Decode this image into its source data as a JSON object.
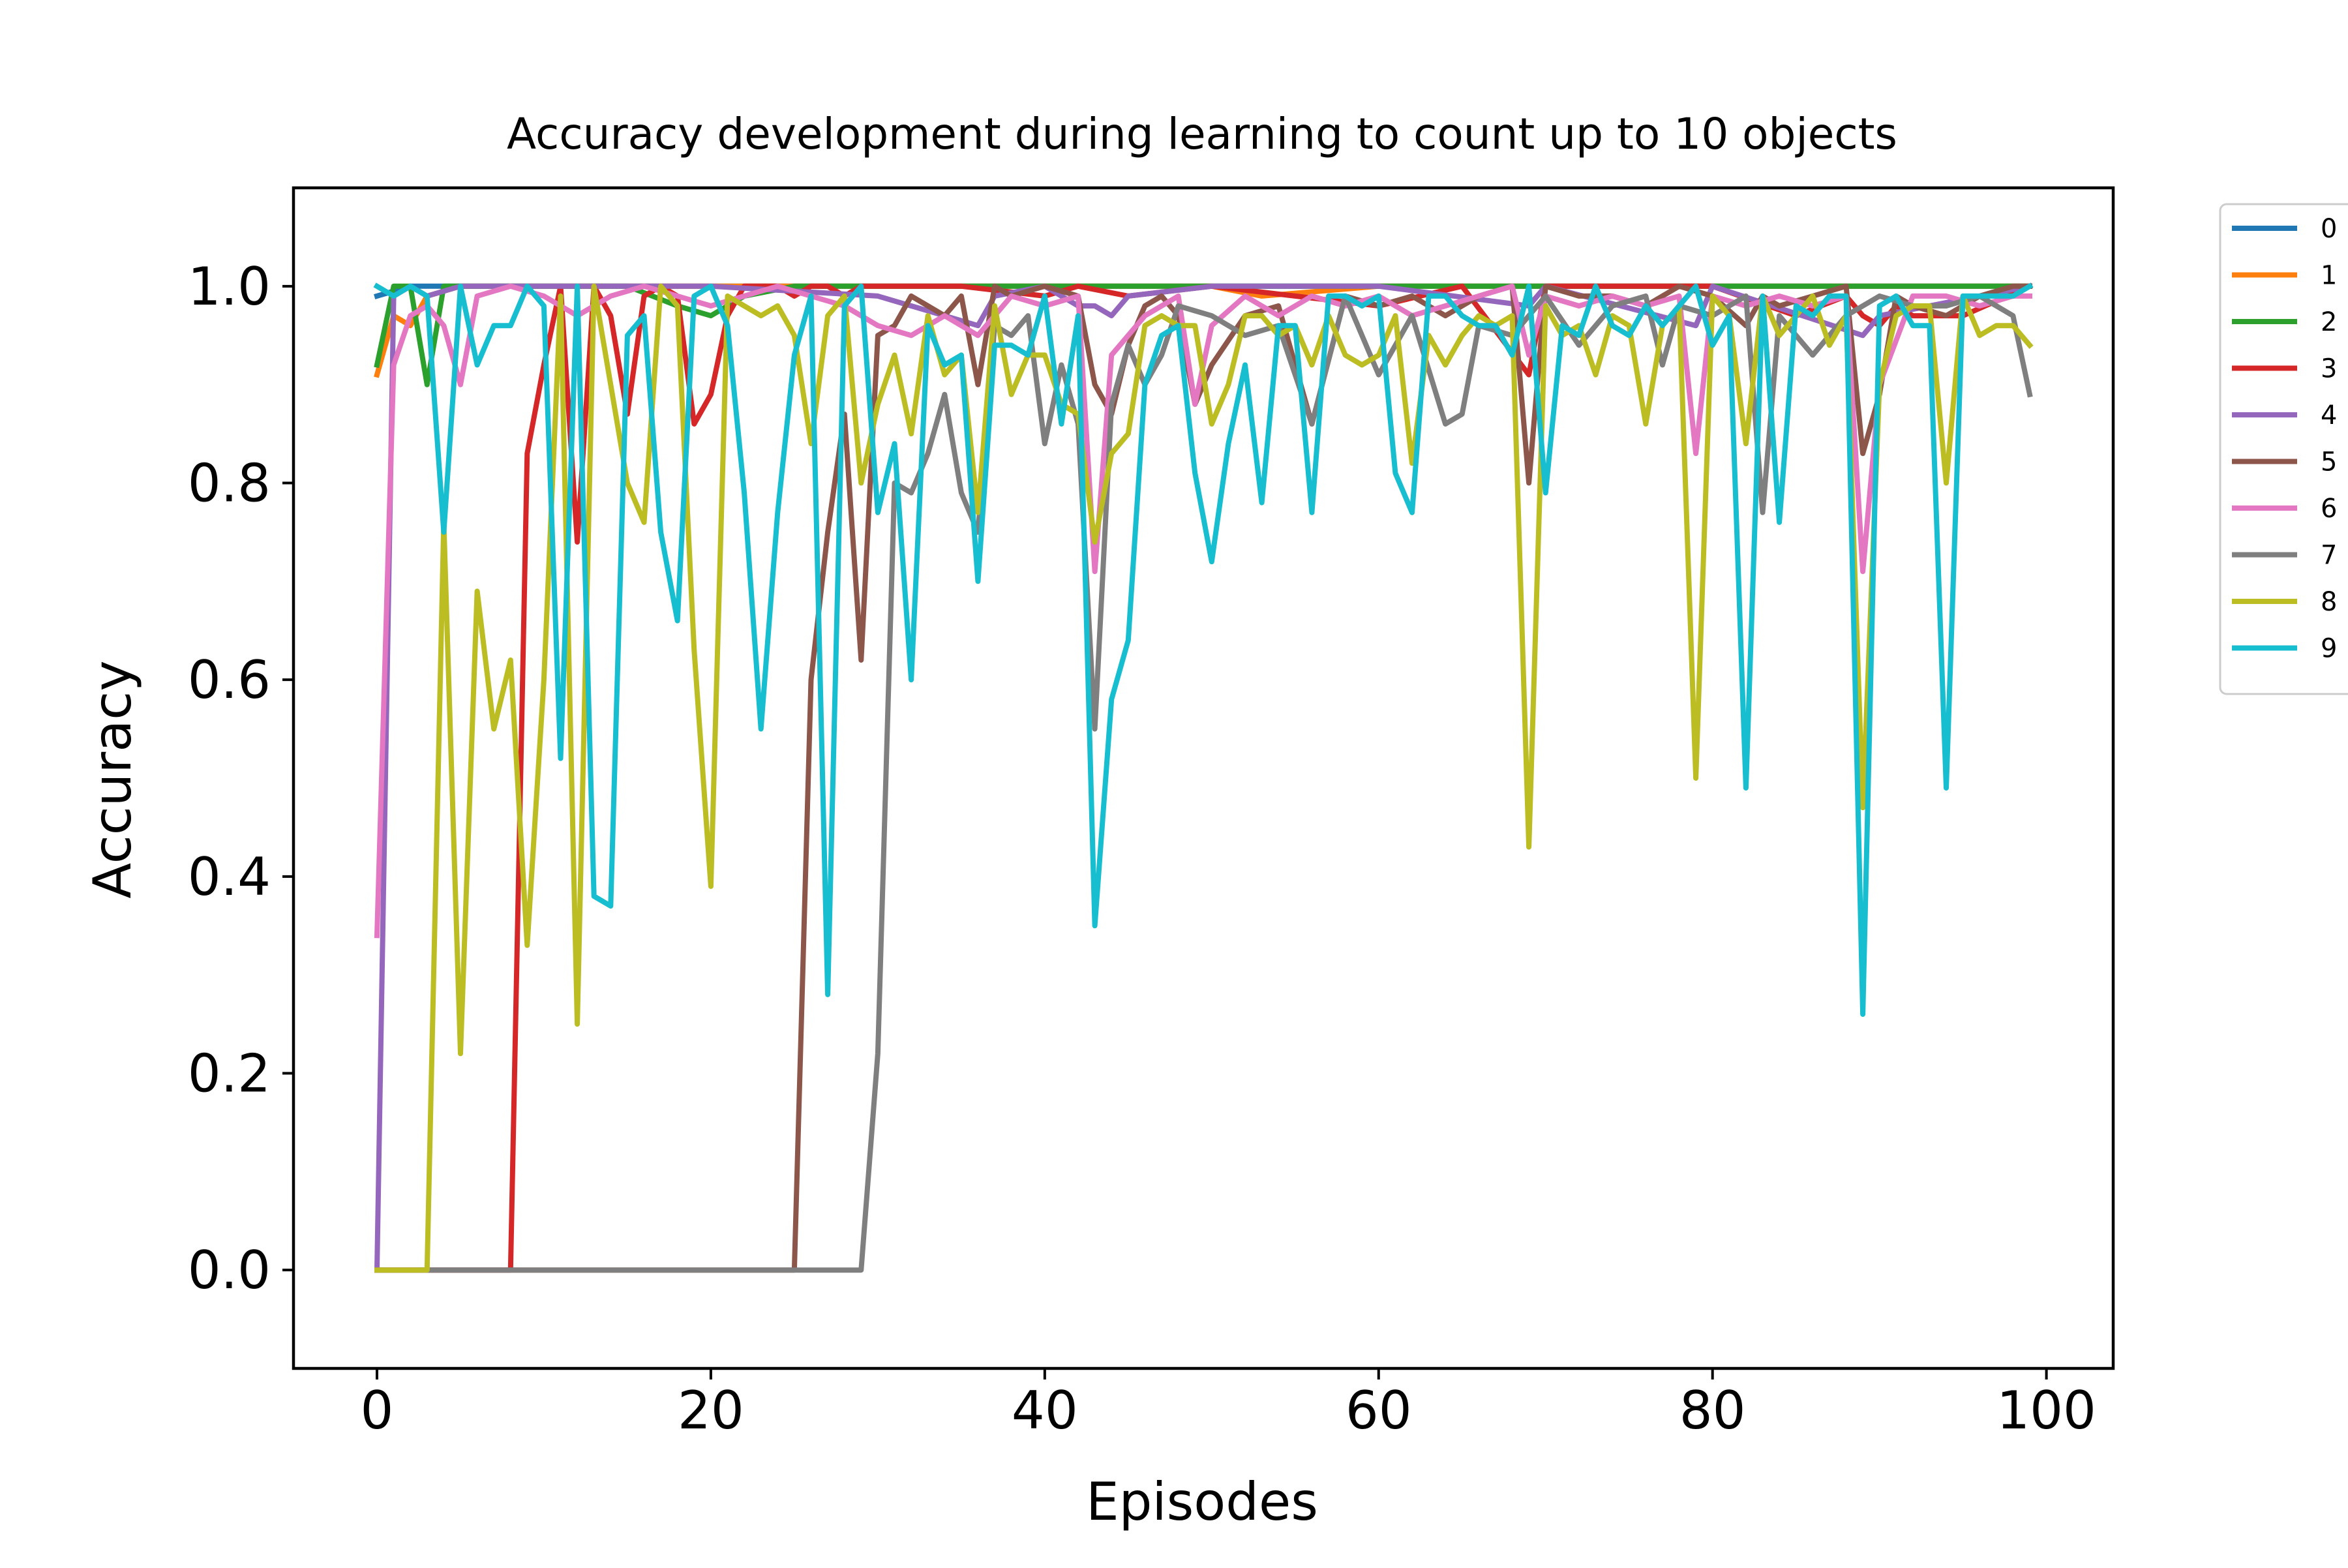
{
  "chart_data": {
    "type": "line",
    "title": "Accuracy development during learning to count up to 10 objects",
    "xlabel": "Episodes",
    "ylabel": "Accuracy",
    "xlim": [
      -5,
      104
    ],
    "ylim": [
      -0.1,
      1.1
    ],
    "xticks": [
      0,
      20,
      40,
      60,
      80,
      100
    ],
    "xtick_labels": [
      "0",
      "20",
      "40",
      "60",
      "80",
      "100"
    ],
    "yticks": [
      0.0,
      0.2,
      0.4,
      0.6,
      0.8,
      1.0
    ],
    "ytick_labels": [
      "0.0",
      "0.2",
      "0.4",
      "0.6",
      "0.8",
      "1.0"
    ],
    "grid": false,
    "legend": {
      "placement": "outside-right",
      "labels": [
        "0",
        "1",
        "2",
        "3",
        "4",
        "5",
        "6",
        "7",
        "8",
        "9"
      ]
    },
    "series": [
      {
        "name": "0",
        "color": "#1f77b4",
        "x": [
          0,
          1,
          2,
          3,
          4,
          10,
          20,
          30,
          40,
          50,
          60,
          70,
          80,
          90,
          99
        ],
        "y": [
          0.99,
          0.995,
          1.0,
          1.0,
          1.0,
          1.0,
          1.0,
          1.0,
          1.0,
          1.0,
          1.0,
          1.0,
          1.0,
          1.0,
          1.0
        ]
      },
      {
        "name": "1",
        "color": "#ff7f0e",
        "x": [
          0,
          1,
          2,
          3,
          5,
          10,
          20,
          30,
          40,
          50,
          53,
          60,
          70,
          80,
          90,
          99
        ],
        "y": [
          0.91,
          0.97,
          0.96,
          0.99,
          1.0,
          1.0,
          1.0,
          1.0,
          1.0,
          1.0,
          0.99,
          1.0,
          1.0,
          1.0,
          1.0,
          1.0
        ]
      },
      {
        "name": "2",
        "color": "#2ca02c",
        "x": [
          0,
          1,
          2,
          3,
          4,
          5,
          10,
          15,
          18,
          20,
          22,
          25,
          30,
          40,
          50,
          60,
          70,
          80,
          90,
          99
        ],
        "y": [
          0.92,
          1.0,
          1.0,
          0.9,
          1.0,
          1.0,
          1.0,
          1.0,
          0.98,
          0.97,
          0.99,
          1.0,
          1.0,
          1.0,
          1.0,
          1.0,
          1.0,
          1.0,
          1.0,
          1.0
        ]
      },
      {
        "name": "3",
        "color": "#d62728",
        "x": [
          0,
          1,
          2,
          3,
          4,
          5,
          6,
          7,
          8,
          9,
          10,
          11,
          12,
          13,
          14,
          15,
          16,
          17,
          18,
          19,
          20,
          21,
          22,
          23,
          24,
          25,
          26,
          27,
          28,
          29,
          30,
          35,
          40,
          42,
          45,
          50,
          55,
          60,
          65,
          69,
          70,
          75,
          80,
          85,
          88,
          89,
          90,
          91,
          92,
          95,
          99
        ],
        "y": [
          0.0,
          0.0,
          0.0,
          0.0,
          0.0,
          0.0,
          0.0,
          0.0,
          0.0,
          0.83,
          0.92,
          1.0,
          0.74,
          1.0,
          0.97,
          0.87,
          0.99,
          1.0,
          0.99,
          0.86,
          0.89,
          0.97,
          1.0,
          1.0,
          1.0,
          0.99,
          1.0,
          1.0,
          0.99,
          1.0,
          1.0,
          1.0,
          0.99,
          1.0,
          0.99,
          1.0,
          0.99,
          0.98,
          1.0,
          0.91,
          1.0,
          1.0,
          1.0,
          0.97,
          0.99,
          0.97,
          0.96,
          0.98,
          0.97,
          0.97,
          1.0
        ]
      },
      {
        "name": "4",
        "color": "#9467bd",
        "x": [
          0,
          1,
          2,
          3,
          5,
          10,
          20,
          30,
          36,
          37,
          40,
          42,
          43,
          44,
          45,
          50,
          60,
          69,
          70,
          79,
          80,
          89,
          90,
          99
        ],
        "y": [
          0.0,
          0.99,
          1.0,
          0.99,
          1.0,
          1.0,
          1.0,
          0.99,
          0.96,
          0.99,
          1.0,
          0.98,
          0.98,
          0.97,
          0.99,
          1.0,
          1.0,
          0.98,
          1.0,
          0.96,
          1.0,
          0.95,
          0.97,
          1.0
        ]
      },
      {
        "name": "5",
        "color": "#8c564b",
        "x": [
          0,
          25,
          26,
          27,
          28,
          29,
          30,
          31,
          32,
          33,
          34,
          35,
          36,
          37,
          38,
          40,
          42,
          43,
          44,
          45,
          46,
          47,
          48,
          49,
          50,
          52,
          54,
          56,
          58,
          60,
          62,
          64,
          66,
          68,
          69,
          70,
          72,
          74,
          76,
          78,
          80,
          82,
          83,
          84,
          86,
          88,
          89,
          90,
          91,
          92,
          94,
          96,
          98,
          99
        ],
        "y": [
          0.0,
          0.0,
          0.6,
          0.75,
          0.87,
          0.62,
          0.95,
          0.96,
          0.99,
          0.98,
          0.97,
          0.99,
          0.9,
          1.0,
          0.99,
          1.0,
          0.99,
          0.9,
          0.87,
          0.94,
          0.98,
          0.99,
          0.97,
          0.88,
          0.92,
          0.97,
          0.98,
          0.86,
          0.99,
          0.98,
          0.99,
          0.97,
          0.99,
          1.0,
          0.8,
          1.0,
          0.99,
          0.99,
          0.98,
          1.0,
          0.99,
          0.96,
          0.99,
          0.98,
          0.99,
          1.0,
          0.83,
          0.89,
          0.99,
          0.98,
          0.97,
          0.99,
          1.0,
          1.0
        ]
      },
      {
        "name": "6",
        "color": "#e377c2",
        "x": [
          0,
          1,
          2,
          3,
          4,
          5,
          6,
          8,
          10,
          12,
          14,
          16,
          18,
          20,
          22,
          24,
          26,
          28,
          30,
          32,
          34,
          36,
          38,
          40,
          42,
          43,
          44,
          46,
          48,
          49,
          50,
          52,
          54,
          56,
          58,
          60,
          62,
          64,
          66,
          68,
          69,
          70,
          72,
          74,
          76,
          78,
          79,
          80,
          82,
          84,
          86,
          88,
          89,
          90,
          92,
          94,
          96,
          98,
          99
        ],
        "y": [
          0.34,
          0.92,
          0.97,
          0.98,
          0.96,
          0.9,
          0.99,
          1.0,
          0.99,
          0.97,
          0.99,
          1.0,
          0.99,
          0.98,
          0.99,
          1.0,
          0.99,
          0.98,
          0.96,
          0.95,
          0.97,
          0.95,
          0.99,
          0.98,
          0.99,
          0.71,
          0.93,
          0.97,
          0.99,
          0.88,
          0.96,
          0.99,
          0.97,
          0.99,
          0.98,
          0.99,
          0.97,
          0.98,
          0.99,
          1.0,
          0.93,
          0.99,
          0.98,
          0.99,
          0.98,
          0.99,
          0.83,
          0.99,
          0.98,
          0.99,
          0.98,
          0.99,
          0.71,
          0.9,
          0.99,
          0.99,
          0.98,
          0.99,
          0.99
        ]
      },
      {
        "name": "7",
        "color": "#7f7f7f",
        "x": [
          0,
          29,
          30,
          31,
          32,
          33,
          34,
          35,
          36,
          37,
          38,
          39,
          40,
          41,
          42,
          43,
          44,
          45,
          46,
          47,
          48,
          50,
          52,
          54,
          56,
          58,
          60,
          62,
          64,
          65,
          66,
          68,
          70,
          72,
          74,
          76,
          77,
          78,
          80,
          82,
          83,
          84,
          86,
          88,
          90,
          92,
          94,
          96,
          98,
          99
        ],
        "y": [
          0.0,
          0.0,
          0.22,
          0.8,
          0.79,
          0.83,
          0.89,
          0.79,
          0.75,
          0.96,
          0.95,
          0.97,
          0.84,
          0.92,
          0.86,
          0.55,
          0.88,
          0.94,
          0.9,
          0.93,
          0.98,
          0.97,
          0.95,
          0.96,
          0.86,
          0.99,
          0.91,
          0.97,
          0.86,
          0.87,
          0.96,
          0.95,
          0.99,
          0.94,
          0.98,
          0.99,
          0.92,
          0.98,
          0.97,
          0.99,
          0.77,
          0.97,
          0.93,
          0.97,
          0.99,
          0.98,
          0.98,
          0.99,
          0.97,
          0.89
        ]
      },
      {
        "name": "8",
        "color": "#bcbd22",
        "x": [
          0,
          1,
          2,
          3,
          4,
          5,
          6,
          7,
          8,
          9,
          10,
          11,
          12,
          13,
          14,
          15,
          16,
          17,
          18,
          19,
          20,
          21,
          22,
          23,
          24,
          25,
          26,
          27,
          28,
          29,
          30,
          31,
          32,
          33,
          34,
          35,
          36,
          37,
          38,
          39,
          40,
          41,
          42,
          43,
          44,
          45,
          46,
          47,
          48,
          49,
          50,
          51,
          52,
          53,
          54,
          55,
          56,
          57,
          58,
          59,
          60,
          61,
          62,
          63,
          64,
          65,
          66,
          67,
          68,
          69,
          70,
          71,
          72,
          73,
          74,
          75,
          76,
          77,
          78,
          79,
          80,
          81,
          82,
          83,
          84,
          85,
          86,
          87,
          88,
          89,
          90,
          91,
          92,
          93,
          94,
          95,
          96,
          97,
          98,
          99
        ],
        "y": [
          0.0,
          0.0,
          0.0,
          0.0,
          0.76,
          0.22,
          0.69,
          0.55,
          0.62,
          0.33,
          0.6,
          0.99,
          0.25,
          1.0,
          0.9,
          0.8,
          0.76,
          1.0,
          0.98,
          0.63,
          0.39,
          0.99,
          0.98,
          0.97,
          0.98,
          0.95,
          0.84,
          0.97,
          0.99,
          0.8,
          0.88,
          0.93,
          0.85,
          0.97,
          0.91,
          0.93,
          0.77,
          0.98,
          0.89,
          0.93,
          0.93,
          0.88,
          0.87,
          0.74,
          0.83,
          0.85,
          0.96,
          0.97,
          0.96,
          0.96,
          0.86,
          0.9,
          0.97,
          0.97,
          0.95,
          0.96,
          0.92,
          0.97,
          0.93,
          0.92,
          0.93,
          0.97,
          0.82,
          0.95,
          0.92,
          0.95,
          0.97,
          0.96,
          0.97,
          0.43,
          0.98,
          0.95,
          0.96,
          0.91,
          0.97,
          0.96,
          0.86,
          0.96,
          0.98,
          0.5,
          0.99,
          0.97,
          0.84,
          0.99,
          0.95,
          0.97,
          0.99,
          0.94,
          0.97,
          0.47,
          0.9,
          0.97,
          0.98,
          0.98,
          0.8,
          0.99,
          0.95,
          0.96,
          0.96,
          0.94
        ]
      },
      {
        "name": "9",
        "color": "#17becf",
        "x": [
          0,
          1,
          2,
          3,
          4,
          5,
          6,
          7,
          8,
          9,
          10,
          11,
          12,
          13,
          14,
          15,
          16,
          17,
          18,
          19,
          20,
          21,
          22,
          23,
          24,
          25,
          26,
          27,
          28,
          29,
          30,
          31,
          32,
          33,
          34,
          35,
          36,
          37,
          38,
          39,
          40,
          41,
          42,
          43,
          44,
          45,
          46,
          47,
          48,
          49,
          50,
          51,
          52,
          53,
          54,
          55,
          56,
          57,
          58,
          59,
          60,
          61,
          62,
          63,
          64,
          65,
          66,
          67,
          68,
          69,
          70,
          71,
          72,
          73,
          74,
          75,
          76,
          77,
          78,
          79,
          80,
          81,
          82,
          83,
          84,
          85,
          86,
          87,
          88,
          89,
          90,
          91,
          92,
          93,
          94,
          95,
          96,
          97,
          98,
          99
        ],
        "y": [
          1.0,
          0.99,
          1.0,
          0.99,
          0.75,
          1.0,
          0.92,
          0.96,
          0.96,
          1.0,
          0.98,
          0.52,
          1.0,
          0.38,
          0.37,
          0.95,
          0.97,
          0.75,
          0.66,
          0.99,
          1.0,
          0.96,
          0.79,
          0.55,
          0.77,
          0.93,
          0.99,
          0.28,
          0.98,
          1.0,
          0.77,
          0.84,
          0.6,
          0.96,
          0.92,
          0.93,
          0.7,
          0.94,
          0.94,
          0.93,
          0.99,
          0.86,
          0.97,
          0.35,
          0.58,
          0.64,
          0.9,
          0.95,
          0.96,
          0.81,
          0.72,
          0.84,
          0.92,
          0.78,
          0.96,
          0.96,
          0.77,
          0.99,
          0.99,
          0.98,
          0.99,
          0.81,
          0.77,
          0.99,
          0.99,
          0.97,
          0.96,
          0.96,
          0.93,
          1.0,
          0.79,
          0.96,
          0.95,
          1.0,
          0.96,
          0.95,
          0.98,
          0.96,
          0.98,
          1.0,
          0.94,
          0.97,
          0.49,
          0.99,
          0.76,
          0.98,
          0.97,
          0.99,
          0.99,
          0.26,
          0.98,
          0.99,
          0.96,
          0.96,
          0.49,
          0.99,
          0.99,
          0.99,
          0.99,
          1.0
        ]
      }
    ]
  }
}
